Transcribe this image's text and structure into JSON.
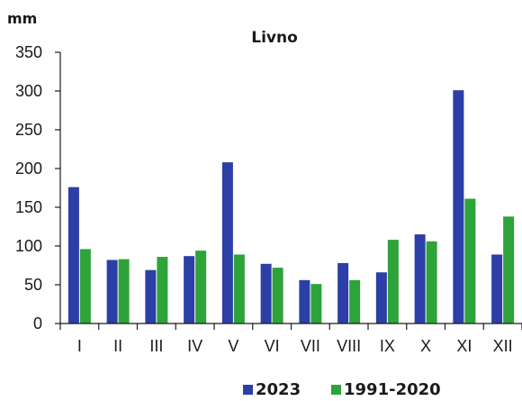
{
  "chart_data": {
    "type": "bar",
    "title": "Livno",
    "ylabel": "mm",
    "xlabel": "",
    "ylim": [
      0,
      350
    ],
    "yticks": [
      0,
      50,
      100,
      150,
      200,
      250,
      300,
      350
    ],
    "categories": [
      "I",
      "II",
      "III",
      "IV",
      "V",
      "VI",
      "VII",
      "VIII",
      "IX",
      "X",
      "XI",
      "XII"
    ],
    "series": [
      {
        "name": "2023",
        "color": "#2b3fa6",
        "values": [
          176,
          82,
          69,
          87,
          208,
          77,
          56,
          78,
          66,
          115,
          301,
          89
        ]
      },
      {
        "name": "1991-2020",
        "color": "#2ea33a",
        "values": [
          96,
          83,
          86,
          94,
          89,
          72,
          51,
          56,
          108,
          106,
          161,
          138
        ]
      }
    ],
    "legend_position": "bottom",
    "grid": false
  }
}
